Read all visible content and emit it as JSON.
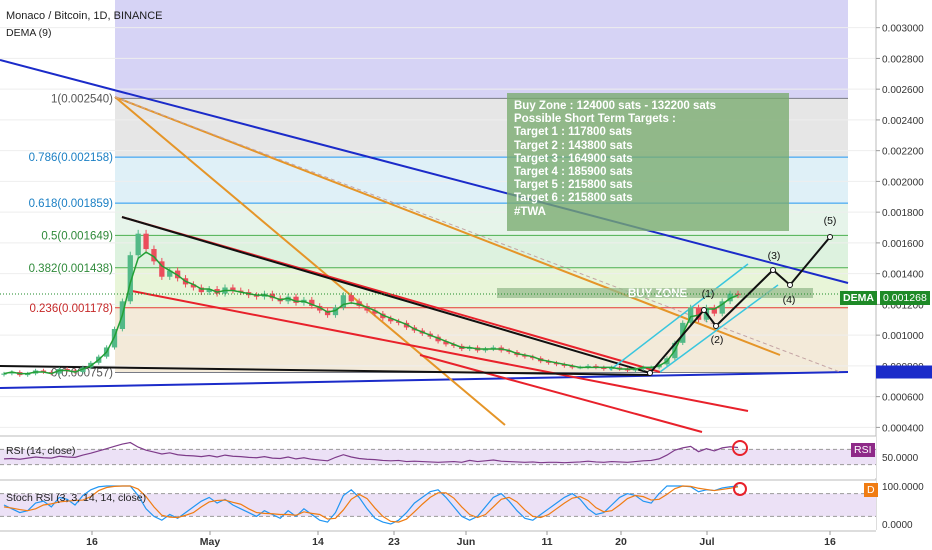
{
  "header": {
    "title": "Monaco / Bitcoin, 1D, BINANCE",
    "indicator": "DEMA (9)"
  },
  "note": {
    "lines": [
      "Buy Zone : 124000 sats - 132200 sats",
      "Possible Short Term Targets :",
      "Target 1 : 117800 sats",
      "Target 2 : 143800 sats",
      "Target 3 : 164900 sats",
      "Target 4 : 185900 sats",
      "Target 5 : 215800 sats",
      "Target 6 : 215800 sats",
      "#TWA"
    ]
  },
  "buy_zone_label": "BUY ZONE",
  "dema_tag": {
    "label": "DEMA",
    "value": "0.001268",
    "color": "#1e8a27"
  },
  "rsi_tag": {
    "label": "RSI",
    "color": "#8e2a88"
  },
  "stoch_tag": {
    "label": "D",
    "color": "#f07c12"
  },
  "wave_labels": [
    "(1)",
    "(2)",
    "(3)",
    "(4)",
    "(5)"
  ],
  "rsi_label": "RSI (14, close)",
  "stoch_label": "Stoch RSI (3, 3, 14, 14, close)",
  "colors": {
    "up": "#53b987",
    "down": "#eb4d5c",
    "dema": "#229f35",
    "blue_line": "#1b2bc9",
    "orange_line": "#e59528",
    "red_line": "#e8212b",
    "cyan_line": "#39c6de",
    "zone_purple": "#d6d3f5",
    "rsi_purple": "#7e3b8a"
  },
  "chart_data": {
    "type": "candlestick",
    "title": "Monaco / Bitcoin, 1D, BINANCE",
    "xlabel": "",
    "ylabel": "",
    "x_ticks": [
      "16",
      "May",
      "14",
      "23",
      "Jun",
      "11",
      "20",
      "Jul",
      "16"
    ],
    "y_ticks": [
      "0.000400",
      "0.000600",
      "0.000800",
      "0.001000",
      "0.001200",
      "0.001400",
      "0.001600",
      "0.001800",
      "0.002000",
      "0.002200",
      "0.002400",
      "0.002600",
      "0.002800",
      "0.003000"
    ],
    "ylim": [
      0.00037,
      0.00318
    ],
    "last_price": 0.001268,
    "fib_levels": [
      {
        "label": "1(0.002540)",
        "value": 0.00254
      },
      {
        "label": "0.786(0.002158)",
        "value": 0.002158
      },
      {
        "label": "0.618(0.001859)",
        "value": 0.001859
      },
      {
        "label": "0.5(0.001649)",
        "value": 0.001649
      },
      {
        "label": "0.382(0.001438)",
        "value": 0.001438
      },
      {
        "label": "0.236(0.001178)",
        "value": 0.001178
      },
      {
        "label": "0(0.000757)",
        "value": 0.000757
      }
    ],
    "close": [
      0.00075,
      0.00076,
      0.00074,
      0.00075,
      0.00077,
      0.00076,
      0.00075,
      0.00078,
      0.00077,
      0.00076,
      0.00079,
      0.00082,
      0.00086,
      0.00092,
      0.00104,
      0.00122,
      0.00152,
      0.00166,
      0.00156,
      0.00148,
      0.00138,
      0.00142,
      0.00137,
      0.00133,
      0.00131,
      0.00128,
      0.0013,
      0.00127,
      0.00131,
      0.00129,
      0.00128,
      0.00126,
      0.00125,
      0.00127,
      0.00124,
      0.00122,
      0.00125,
      0.00121,
      0.00123,
      0.00119,
      0.00116,
      0.00113,
      0.00118,
      0.00126,
      0.00122,
      0.00119,
      0.00116,
      0.00114,
      0.00111,
      0.00109,
      0.00108,
      0.00105,
      0.00103,
      0.00101,
      0.00099,
      0.00096,
      0.00094,
      0.00093,
      0.00091,
      0.00092,
      0.0009,
      0.00091,
      0.00092,
      0.0009,
      0.00089,
      0.00087,
      0.00086,
      0.00085,
      0.00083,
      0.00082,
      0.00081,
      0.0008,
      0.00079,
      0.00079,
      0.0008,
      0.00079,
      0.00078,
      0.00079,
      0.00078,
      0.00077,
      0.00078,
      0.00079,
      0.00079,
      0.00081,
      0.00085,
      0.00095,
      0.00108,
      0.00118,
      0.0011,
      0.00118,
      0.00114,
      0.00122,
      0.00127,
      0.00126
    ],
    "dema": [
      0.00075,
      0.00076,
      0.00075,
      0.00075,
      0.00076,
      0.00076,
      0.00075,
      0.00077,
      0.00077,
      0.00076,
      0.00078,
      0.0008,
      0.00084,
      0.00089,
      0.00099,
      0.00113,
      0.00134,
      0.0015,
      0.00154,
      0.00151,
      0.00145,
      0.00142,
      0.00139,
      0.00135,
      0.00133,
      0.0013,
      0.0013,
      0.00128,
      0.00129,
      0.00129,
      0.00128,
      0.00127,
      0.00126,
      0.00126,
      0.00125,
      0.00123,
      0.00124,
      0.00122,
      0.00122,
      0.0012,
      0.00118,
      0.00115,
      0.00116,
      0.0012,
      0.00121,
      0.0012,
      0.00118,
      0.00116,
      0.00113,
      0.00111,
      0.00109,
      0.00107,
      0.00104,
      0.00102,
      0.001,
      0.00098,
      0.00096,
      0.00094,
      0.00092,
      0.00092,
      0.00091,
      0.00091,
      0.00091,
      0.00091,
      0.0009,
      0.00088,
      0.00087,
      0.00086,
      0.00084,
      0.00083,
      0.00082,
      0.00081,
      0.0008,
      0.00079,
      0.00079,
      0.00079,
      0.00079,
      0.00079,
      0.00078,
      0.00078,
      0.00078,
      0.00079,
      0.00079,
      0.0008,
      0.00083,
      0.0009,
      0.00101,
      0.00112,
      0.00113,
      0.00117,
      0.00117,
      0.0012,
      0.00124,
      0.00126
    ],
    "rsi_ylim": [
      0,
      100
    ],
    "rsi_ticks": [
      "50.0000"
    ],
    "rsi": [
      45,
      46,
      44,
      47,
      50,
      48,
      47,
      52,
      50,
      49,
      55,
      60,
      66,
      72,
      78,
      84,
      88,
      76,
      68,
      63,
      58,
      61,
      56,
      54,
      53,
      51,
      54,
      50,
      55,
      52,
      51,
      49,
      48,
      51,
      47,
      46,
      50,
      45,
      48,
      44,
      42,
      40,
      49,
      56,
      50,
      46,
      44,
      43,
      41,
      40,
      41,
      38,
      39,
      38,
      37,
      36,
      37,
      38,
      36,
      41,
      38,
      40,
      42,
      39,
      38,
      37,
      36,
      37,
      35,
      36,
      36,
      35,
      36,
      37,
      39,
      37,
      36,
      38,
      37,
      36,
      38,
      40,
      41,
      45,
      55,
      68,
      74,
      78,
      64,
      72,
      66,
      74,
      77,
      75
    ],
    "stoch_ylim": [
      0,
      100
    ],
    "stoch_ticks": [
      "0.0000",
      "100.0000"
    ],
    "stoch_k": [
      50,
      40,
      30,
      35,
      55,
      60,
      45,
      70,
      65,
      50,
      75,
      90,
      98,
      100,
      100,
      100,
      100,
      75,
      40,
      20,
      10,
      25,
      15,
      30,
      45,
      60,
      70,
      55,
      65,
      50,
      40,
      30,
      20,
      35,
      25,
      15,
      35,
      20,
      40,
      25,
      10,
      5,
      30,
      75,
      90,
      70,
      40,
      15,
      5,
      0,
      10,
      30,
      55,
      70,
      85,
      90,
      70,
      45,
      20,
      10,
      20,
      45,
      70,
      80,
      60,
      35,
      15,
      10,
      25,
      40,
      55,
      70,
      80,
      65,
      40,
      25,
      30,
      50,
      70,
      80,
      75,
      60,
      55,
      80,
      100,
      100,
      100,
      98,
      85,
      90,
      88,
      95,
      98,
      100
    ],
    "stoch_d": [
      45,
      42,
      38,
      35,
      40,
      50,
      53,
      58,
      60,
      62,
      63,
      72,
      88,
      96,
      99,
      100,
      100,
      92,
      72,
      45,
      23,
      18,
      17,
      23,
      30,
      45,
      58,
      62,
      63,
      57,
      52,
      40,
      30,
      28,
      27,
      25,
      25,
      23,
      32,
      28,
      25,
      13,
      15,
      37,
      65,
      78,
      67,
      42,
      20,
      7,
      5,
      13,
      32,
      52,
      70,
      82,
      82,
      68,
      45,
      25,
      17,
      25,
      45,
      65,
      70,
      58,
      37,
      20,
      17,
      25,
      40,
      55,
      68,
      72,
      62,
      43,
      32,
      35,
      50,
      67,
      75,
      72,
      63,
      65,
      78,
      93,
      100,
      99,
      94,
      91,
      88,
      91,
      94,
      98
    ]
  }
}
